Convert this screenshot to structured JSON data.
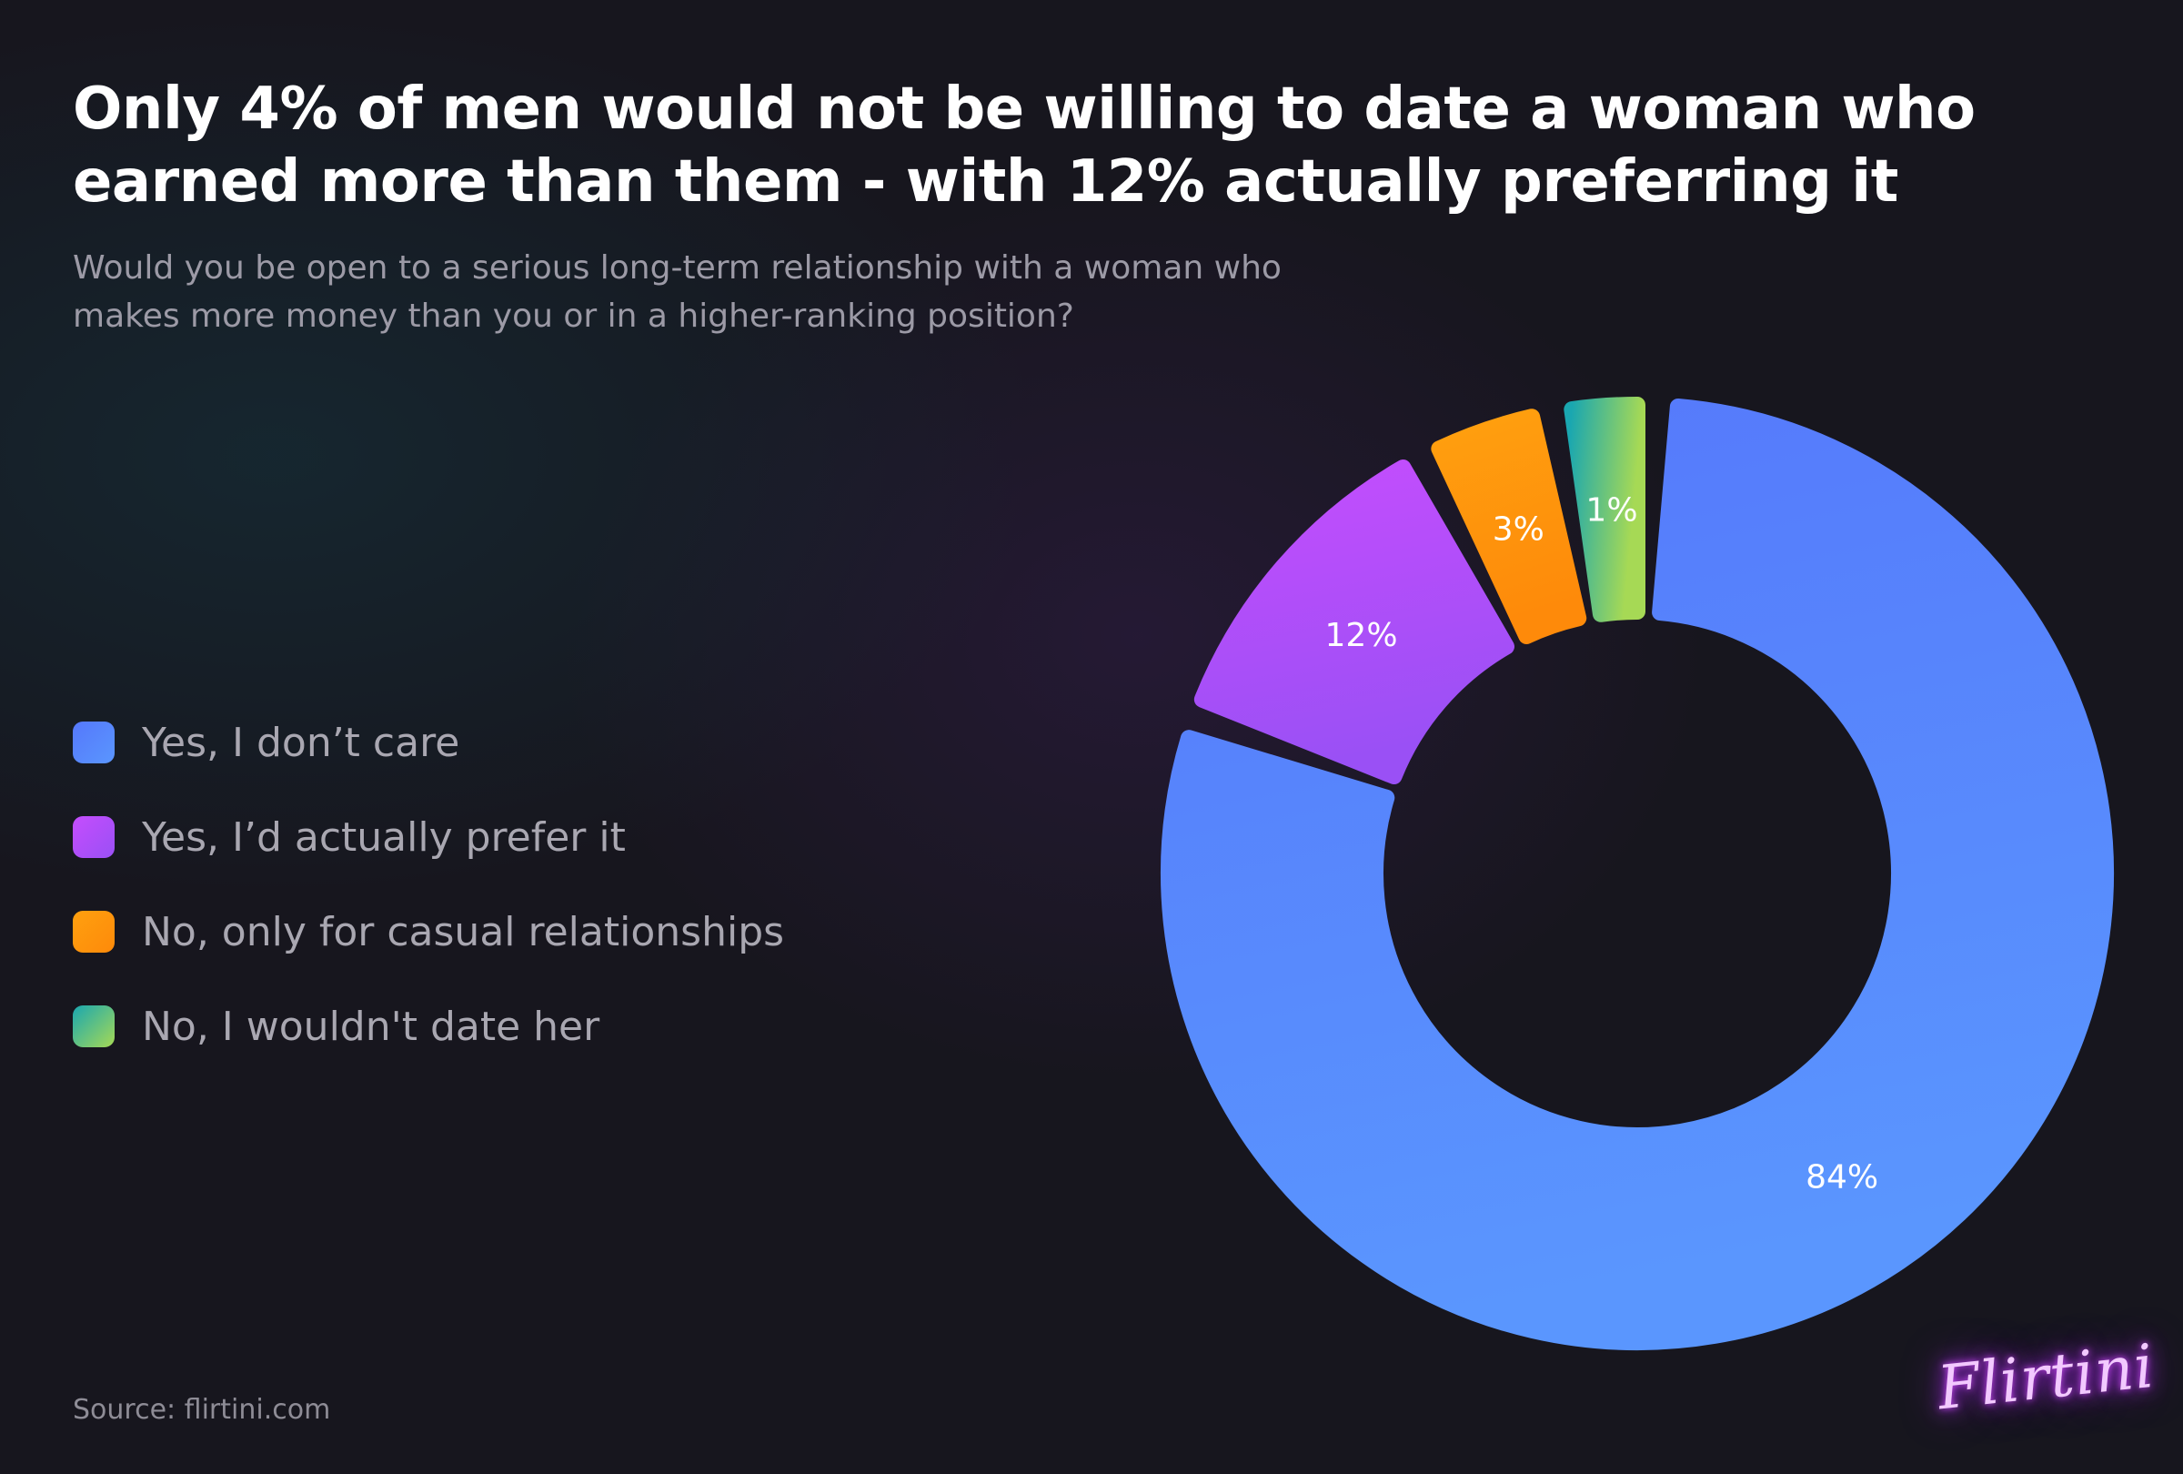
{
  "title": "Only 4% of men would not be willing to date a woman who earned more than them - with 12% actually preferring it",
  "subtitle": "Would you be open to a serious long-term relationship with a woman who makes more money than you or in a higher-ranking position?",
  "source": "Source: flirtini.com",
  "logo_text": "Flirtini",
  "chart_data": {
    "type": "pie",
    "title": "Only 4% of men would not be willing to date a woman who earned more than them - with 12% actually preferring it",
    "subtitle": "Would you be open to a serious long-term relationship with a woman who makes more money than you or in a higher-ranking position?",
    "legend_position": "left",
    "donut": true,
    "slices": [
      {
        "label": "Yes, I don’t care",
        "value": 84,
        "data_label": "84%",
        "color": "#5578fb",
        "color_end": "#5a96fe"
      },
      {
        "label": "Yes, I’d actually prefer it",
        "value": 12,
        "data_label": "12%",
        "color": "#c54dfd",
        "color_end": "#9a50f5"
      },
      {
        "label": "No, only for casual relationships",
        "value": 3,
        "data_label": "3%",
        "color": "#ffa00f",
        "color_end": "#fe8a0a"
      },
      {
        "label": "No, I wouldn't date her",
        "value": 1,
        "data_label": "1%",
        "color": "#1aa7b0",
        "color_end": "#a6d955"
      }
    ]
  }
}
